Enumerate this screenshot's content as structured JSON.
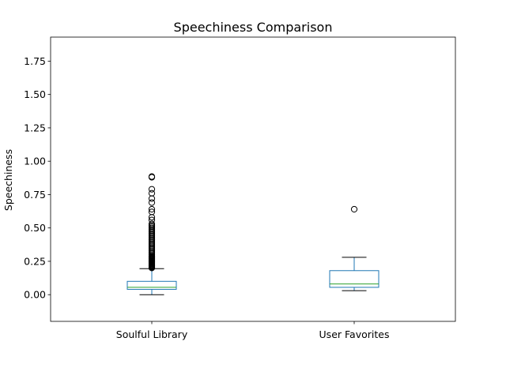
{
  "chart_data": {
    "type": "box",
    "title": "Speechiness Comparison",
    "xlabel": "",
    "ylabel": "Speechiness",
    "ylim": [
      -0.2,
      1.93
    ],
    "yticks": [
      0.0,
      0.25,
      0.5,
      0.75,
      1.0,
      1.25,
      1.5,
      1.75
    ],
    "ytick_labels": [
      "0.00",
      "0.25",
      "0.50",
      "0.75",
      "1.00",
      "1.25",
      "1.50",
      "1.75"
    ],
    "categories": [
      "Soulful Library",
      "User Favorites"
    ],
    "grid": false,
    "colors": {
      "box": "#1f77b4",
      "median": "#2ca02c",
      "whisker": "#000000",
      "flier": "#000000"
    },
    "boxes": [
      {
        "name": "Soulful Library",
        "whisker_low": 0.0,
        "q1": 0.04,
        "median": 0.055,
        "q3": 0.1,
        "whisker_high": 0.195,
        "outliers": [
          0.2,
          0.205,
          0.21,
          0.215,
          0.22,
          0.225,
          0.23,
          0.235,
          0.24,
          0.245,
          0.25,
          0.255,
          0.26,
          0.265,
          0.27,
          0.275,
          0.28,
          0.285,
          0.29,
          0.3,
          0.31,
          0.32,
          0.33,
          0.34,
          0.35,
          0.36,
          0.37,
          0.38,
          0.39,
          0.4,
          0.41,
          0.42,
          0.43,
          0.44,
          0.45,
          0.46,
          0.47,
          0.48,
          0.49,
          0.5,
          0.51,
          0.52,
          0.53,
          0.56,
          0.58,
          0.62,
          0.64,
          0.69,
          0.72,
          0.76,
          0.79,
          0.88,
          0.885
        ]
      },
      {
        "name": "User Favorites",
        "whisker_low": 0.03,
        "q1": 0.055,
        "median": 0.08,
        "q3": 0.18,
        "whisker_high": 0.28,
        "outliers": [
          0.64
        ]
      }
    ]
  }
}
